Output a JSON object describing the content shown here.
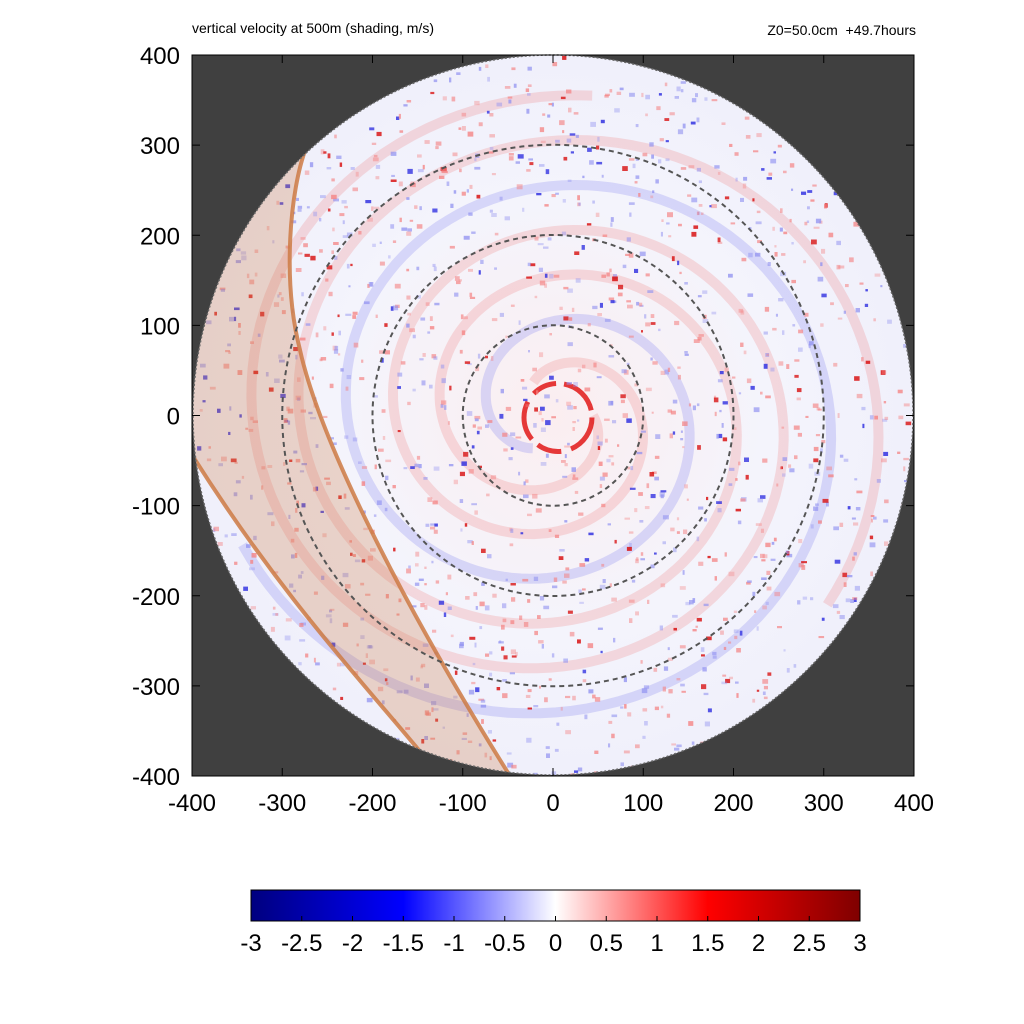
{
  "chart_data": {
    "type": "heatmap",
    "title": "vertical velocity at 500m (shading, m/s)",
    "annotation": "Z0=50.0cm  +49.7hours",
    "x_ticks": [
      -400,
      -300,
      -200,
      -100,
      0,
      100,
      200,
      300,
      400
    ],
    "y_ticks": [
      400,
      300,
      200,
      100,
      0,
      -100,
      -200,
      -300,
      -400
    ],
    "xlim": [
      -400,
      400
    ],
    "ylim": [
      -400,
      400
    ],
    "domain_radius": 400,
    "reference_circles_radius": [
      100,
      200,
      300
    ],
    "colorbar": {
      "ticks": [
        -3,
        -2.5,
        -2,
        -1.5,
        -1,
        -0.5,
        0,
        0.5,
        1,
        1.5,
        2,
        2.5,
        3
      ],
      "range": [
        -3,
        3
      ],
      "colors": [
        "#00007f",
        "#0000ff",
        "#ffffff",
        "#ff0000",
        "#7f0000"
      ]
    },
    "shaded_band_color": "#cc7a44",
    "background_color": "#404040"
  }
}
